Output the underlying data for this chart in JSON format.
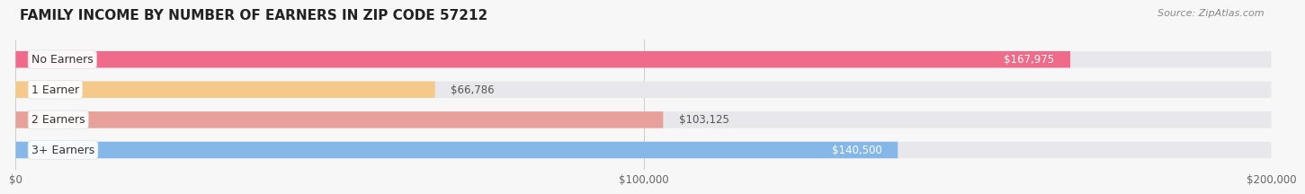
{
  "title": "FAMILY INCOME BY NUMBER OF EARNERS IN ZIP CODE 57212",
  "source": "Source: ZipAtlas.com",
  "categories": [
    "No Earners",
    "1 Earner",
    "2 Earners",
    "3+ Earners"
  ],
  "values": [
    167975,
    66786,
    103125,
    140500
  ],
  "labels": [
    "$167,975",
    "$66,786",
    "$103,125",
    "$140,500"
  ],
  "bar_colors": [
    "#f06b8a",
    "#f5c98a",
    "#e8a09a",
    "#85b8e8"
  ],
  "bar_bg_color": "#e8e8ec",
  "xlim": [
    0,
    200000
  ],
  "xtick_values": [
    0,
    100000,
    200000
  ],
  "xtick_labels": [
    "$0",
    "$100,000",
    "$200,000"
  ],
  "background_color": "#f7f7f7",
  "title_fontsize": 11,
  "source_fontsize": 8,
  "label_fontsize": 8.5,
  "category_fontsize": 9,
  "bar_height": 0.55,
  "label_color_inside": "#ffffff",
  "label_color_outside": "#555555"
}
